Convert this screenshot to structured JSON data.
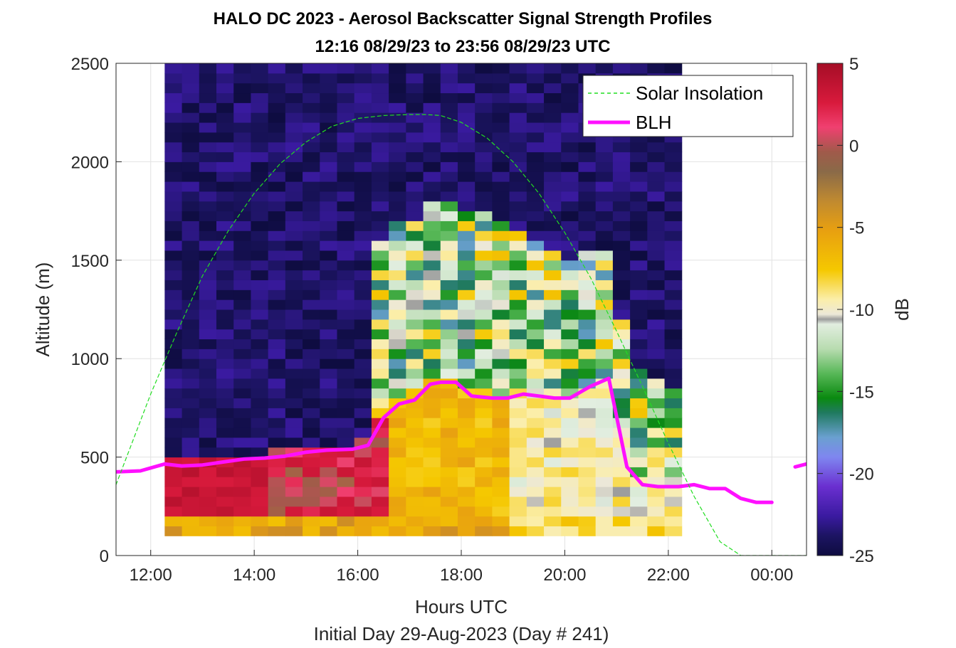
{
  "chart_data": {
    "type": "heatmap",
    "title": "HALO DC 2023 - Aerosol Backscatter Signal Strength Profiles",
    "subtitle": "12:16 08/29/23 to 23:56 08/29/23  UTC",
    "xlabel": "Hours UTC",
    "ylabel": "Altitude (m)",
    "footer": "Initial Day 29-Aug-2023 (Day # 241)",
    "colorbar_label": "dB",
    "clim": [
      -25,
      5
    ],
    "colorbar_ticks": [
      "5",
      "0",
      "-5",
      "-10",
      "-15",
      "-20",
      "-25"
    ],
    "colorbar_tick_values": [
      5,
      0,
      -5,
      -10,
      -15,
      -20,
      -25
    ],
    "xlim": [
      11.33,
      24.67
    ],
    "ylim": [
      0,
      2500
    ],
    "x_ticks": [
      "12:00",
      "14:00",
      "16:00",
      "18:00",
      "20:00",
      "22:00",
      "00:00"
    ],
    "x_tick_values": [
      12,
      14,
      16,
      18,
      20,
      22,
      24
    ],
    "y_ticks": [
      "0",
      "500",
      "1000",
      "1500",
      "2000",
      "2500"
    ],
    "y_tick_values": [
      0,
      500,
      1000,
      1500,
      2000,
      2500
    ],
    "grid": true,
    "legend": {
      "position": "top-right",
      "entries": [
        {
          "label": "Solar Insolation",
          "color": "#22dd22",
          "style": "dashed"
        },
        {
          "label": "BLH",
          "color": "#ff10ff",
          "style": "solid"
        }
      ]
    },
    "heatmap": {
      "x_start": 12.27,
      "x_step": 0.333,
      "y_start": 100,
      "y_step": 50,
      "note": "rows from 100 m (bottom) to 2500 m (top); values in dB; null = no data",
      "top_altitude_by_column": [
        550,
        550,
        600,
        650,
        650,
        650,
        650,
        650,
        650,
        650,
        650,
        650,
        650,
        650,
        650,
        650,
        650,
        650,
        650,
        650,
        650,
        650,
        650,
        650,
        650,
        650,
        650,
        650,
        650,
        650
      ]
    },
    "series": [
      {
        "name": "BLH",
        "color": "#ff10ff",
        "x": [
          11.33,
          11.8,
          12.27,
          12.6,
          13.0,
          13.4,
          13.8,
          14.2,
          14.6,
          15.0,
          15.4,
          15.9,
          16.2,
          16.5,
          16.8,
          17.1,
          17.4,
          17.6,
          17.9,
          18.2,
          18.6,
          18.9,
          19.2,
          19.5,
          19.8,
          20.1,
          20.5,
          20.85,
          21.2,
          21.5,
          21.8,
          22.2,
          22.5,
          22.8,
          23.1,
          23.4,
          23.7,
          24.0
        ],
        "y": [
          425,
          430,
          465,
          455,
          460,
          475,
          490,
          495,
          505,
          525,
          535,
          540,
          560,
          700,
          770,
          790,
          870,
          880,
          880,
          810,
          800,
          800,
          820,
          810,
          800,
          800,
          860,
          900,
          450,
          360,
          350,
          350,
          360,
          340,
          340,
          290,
          270,
          270
        ]
      },
      {
        "name": "BLH",
        "color": "#ff10ff",
        "x": [
          24.45,
          24.67
        ],
        "y": [
          450,
          465
        ]
      },
      {
        "name": "Solar Insolation",
        "color": "#22dd22",
        "style": "dashed",
        "x": [
          11.33,
          12.0,
          12.5,
          13.0,
          13.5,
          14.0,
          14.5,
          15.0,
          15.5,
          16.0,
          16.5,
          17.0,
          17.3,
          17.6,
          18.0,
          18.5,
          19.0,
          19.5,
          20.0,
          20.5,
          21.0,
          21.5,
          22.0,
          22.5,
          23.0,
          23.4,
          23.8,
          24.2,
          24.67
        ],
        "y": [
          360,
          820,
          1130,
          1420,
          1650,
          1840,
          1990,
          2100,
          2180,
          2220,
          2235,
          2240,
          2240,
          2235,
          2200,
          2120,
          2000,
          1840,
          1640,
          1410,
          1140,
          860,
          570,
          300,
          70,
          0,
          0,
          0,
          0
        ]
      }
    ]
  }
}
